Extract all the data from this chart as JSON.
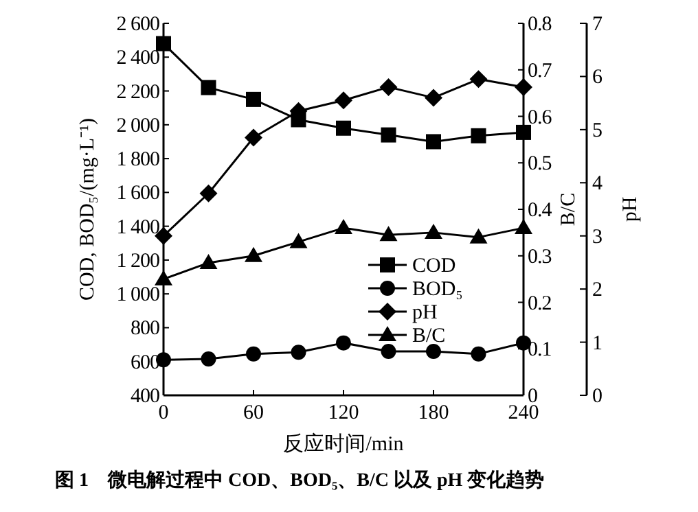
{
  "chart_data": {
    "type": "line",
    "xlabel": "反应时间/min",
    "ylabel": "COD, BOD₅/(mg·L⁻¹)",
    "y2label": "B/C",
    "y3label": "pH",
    "x": [
      0,
      30,
      60,
      90,
      120,
      150,
      180,
      210,
      240
    ],
    "series": [
      {
        "name": "COD",
        "color": "#000000",
        "marker": "square",
        "values": [
          2480,
          2220,
          2150,
          2030,
          1980,
          1940,
          1900,
          1935,
          1955
        ]
      },
      {
        "name": "BOD₅",
        "color": "#000000",
        "marker": "circle",
        "values": [
          610,
          615,
          645,
          655,
          710,
          660,
          660,
          645,
          710
        ]
      },
      {
        "name": "pH",
        "color": "#000000",
        "marker": "diamond",
        "axis": "y3",
        "values": [
          3.0,
          3.8,
          4.85,
          5.35,
          5.55,
          5.8,
          5.6,
          5.95,
          5.8
        ]
      },
      {
        "name": "B/C",
        "color": "#000000",
        "marker": "triangle",
        "axis": "y2",
        "values": [
          0.25,
          0.285,
          0.3,
          0.33,
          0.36,
          0.345,
          0.35,
          0.34,
          0.36
        ]
      }
    ],
    "xlim": [
      0,
      240
    ],
    "xticks": [
      0,
      60,
      120,
      180,
      240
    ],
    "ylim": [
      400,
      2600
    ],
    "yticks": [
      400,
      600,
      800,
      {
        "value": 1000,
        "label": "1 000"
      },
      {
        "value": 1200,
        "label": "1 200"
      },
      {
        "value": 1400,
        "label": "1 400"
      },
      {
        "value": 1600,
        "label": "1 600"
      },
      {
        "value": 1800,
        "label": "1 800"
      },
      {
        "value": 2000,
        "label": "2 000"
      },
      {
        "value": 2200,
        "label": "2 200"
      },
      {
        "value": 2400,
        "label": "2 400"
      },
      {
        "value": 2600,
        "label": "2 600"
      }
    ],
    "y2lim": [
      0,
      0.8
    ],
    "y2ticks": [
      0,
      0.1,
      0.2,
      0.3,
      0.4,
      0.5,
      0.6,
      0.7,
      0.8
    ],
    "y3lim": [
      0,
      7
    ],
    "y3ticks": [
      0,
      1,
      2,
      3,
      4,
      5,
      6,
      7
    ],
    "legend": "center",
    "grid": false,
    "line_style": "solid",
    "annotations": [
      "图 1　微电解过程中 COD、BOD₅、B/C 以及 pH 变化趋势"
    ]
  }
}
